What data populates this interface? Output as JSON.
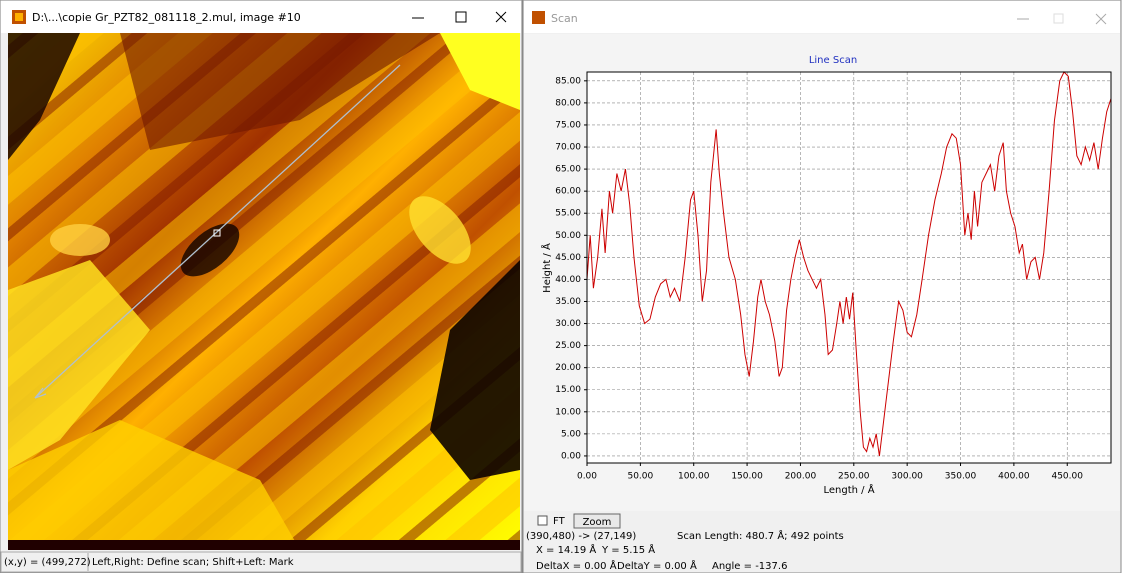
{
  "image_window": {
    "title": "D:\\...\\copie Gr_PZT82_081118_2.mul, image #10",
    "status_position": "(x,y) = (499,272)",
    "status_hint": "Left,Right: Define scan; Shift+Left: Mark"
  },
  "scan_window": {
    "title": "Scan",
    "ft_label": "FT",
    "zoom_button": "Zoom",
    "endpoints": "(390,480) -> (27,149)",
    "scan_length": "Scan Length: 480.7 Å; 492 points",
    "cursor_x": "X = 14.19 Å",
    "cursor_y": "Y = 5.15 Å",
    "delta_x": "DeltaX = 0.00 Å",
    "delta_y": "DeltaY = 0.00 Å",
    "angle": "Angle = -137.6"
  },
  "chart_data": {
    "type": "line",
    "title": "Line Scan",
    "x_label": "Length / Å",
    "y_label": "Height / Å",
    "xlim": [
      0,
      491
    ],
    "ylim": [
      -1.6,
      87
    ],
    "grid": true,
    "xticks": [
      {
        "value": 0,
        "label": "0.00"
      },
      {
        "value": 50,
        "label": "50.00"
      },
      {
        "value": 100,
        "label": "100.00"
      },
      {
        "value": 150,
        "label": "150.00"
      },
      {
        "value": 200,
        "label": "200.00"
      },
      {
        "value": 250,
        "label": "250.00"
      },
      {
        "value": 300,
        "label": "300.00"
      },
      {
        "value": 350,
        "label": "350.00"
      },
      {
        "value": 400,
        "label": "400.00"
      },
      {
        "value": 450,
        "label": "450.00"
      }
    ],
    "yticks": [
      {
        "value": 0,
        "label": "0.00"
      },
      {
        "value": 5,
        "label": "5.00"
      },
      {
        "value": 10,
        "label": "10.00"
      },
      {
        "value": 15,
        "label": "15.00"
      },
      {
        "value": 20,
        "label": "20.00"
      },
      {
        "value": 25,
        "label": "25.00"
      },
      {
        "value": 30,
        "label": "30.00"
      },
      {
        "value": 35,
        "label": "35.00"
      },
      {
        "value": 40,
        "label": "40.00"
      },
      {
        "value": 45,
        "label": "45.00"
      },
      {
        "value": 50,
        "label": "50.00"
      },
      {
        "value": 55,
        "label": "55.00"
      },
      {
        "value": 60,
        "label": "60.00"
      },
      {
        "value": 65,
        "label": "65.00"
      },
      {
        "value": 70,
        "label": "70.00"
      },
      {
        "value": 75,
        "label": "75.00"
      },
      {
        "value": 80,
        "label": "80.00"
      },
      {
        "value": 85,
        "label": "85.00"
      }
    ],
    "series": [
      {
        "color": "#cc0000",
        "x": [
          0,
          3,
          6,
          10,
          14,
          17,
          21,
          24,
          28,
          32,
          36,
          40,
          44,
          49,
          54,
          59,
          64,
          69,
          74,
          78,
          82,
          87,
          92,
          97,
          100,
          104,
          108,
          112,
          116,
          121,
          124,
          128,
          133,
          139,
          144,
          148,
          152,
          156,
          160,
          163,
          167,
          171,
          176,
          180,
          183,
          187,
          191,
          195,
          199,
          203,
          207,
          211,
          215,
          219,
          223,
          226,
          230,
          234,
          237,
          240,
          243,
          246,
          249,
          252,
          256,
          259,
          262,
          265,
          268,
          271,
          274,
          277,
          282,
          287,
          292,
          296,
          300,
          304,
          309,
          314,
          320,
          326,
          332,
          337,
          342,
          346,
          350,
          354,
          357,
          360,
          363,
          366,
          370,
          374,
          378,
          382,
          386,
          390,
          393,
          397,
          401,
          405,
          408,
          412,
          416,
          420,
          424,
          428,
          433,
          438,
          443,
          447,
          451,
          455,
          459,
          463,
          467,
          471,
          475,
          479,
          483,
          487,
          491
        ],
        "values": [
          40,
          50,
          38,
          45,
          56,
          46,
          60,
          55,
          64,
          60,
          65,
          57,
          45,
          34,
          30,
          31,
          36,
          39,
          40,
          36,
          38,
          35,
          45,
          58,
          60,
          50,
          35,
          42,
          62,
          74,
          64,
          55,
          45,
          40,
          32,
          23,
          18,
          26,
          36,
          40,
          35,
          32,
          26,
          18,
          20,
          33,
          40,
          45,
          49,
          45,
          42,
          40,
          38,
          40,
          32,
          23,
          24,
          30,
          35,
          30,
          36,
          31,
          37,
          25,
          10,
          2,
          1,
          4,
          2,
          5,
          0,
          6,
          16,
          26,
          35,
          33,
          28,
          27,
          32,
          40,
          50,
          58,
          64,
          70,
          73,
          72,
          66,
          50,
          55,
          49,
          60,
          52,
          62,
          64,
          66,
          60,
          68,
          71,
          60,
          55,
          52,
          46,
          48,
          40,
          44,
          45,
          40,
          46,
          60,
          76,
          85,
          87,
          86,
          78,
          68,
          66,
          70,
          67,
          71,
          65,
          72,
          78,
          81
        ]
      }
    ]
  }
}
